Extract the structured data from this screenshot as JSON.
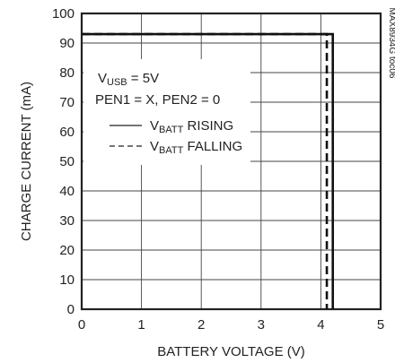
{
  "chart_data": {
    "type": "line",
    "xlabel": "BATTERY VOLTAGE (V)",
    "ylabel": "CHARGE CURRENT (mA)",
    "xlim": [
      0,
      5
    ],
    "ylim": [
      0,
      100
    ],
    "xticks": [
      "0",
      "1",
      "2",
      "3",
      "4",
      "5"
    ],
    "yticks": [
      "0",
      "10",
      "20",
      "30",
      "40",
      "50",
      "60",
      "70",
      "80",
      "90",
      "100"
    ],
    "grid": true,
    "legend_position": "left",
    "conditions": {
      "vusb": {
        "main": "V",
        "sub": "USB",
        "rest": " = 5V"
      },
      "pen": "PEN1 = X, PEN2 = 0"
    },
    "series": [
      {
        "name": {
          "main": "V",
          "sub": "BATT",
          "rest": " RISING"
        },
        "style": "solid",
        "x": [
          0,
          4.2,
          4.2
        ],
        "y": [
          93,
          93,
          0
        ]
      },
      {
        "name": {
          "main": "V",
          "sub": "BATT",
          "rest": " FALLING"
        },
        "style": "dashed",
        "x": [
          0,
          4.1,
          4.1
        ],
        "y": [
          93,
          93,
          0
        ]
      }
    ],
    "side_label": "MAX8934G toc06"
  }
}
